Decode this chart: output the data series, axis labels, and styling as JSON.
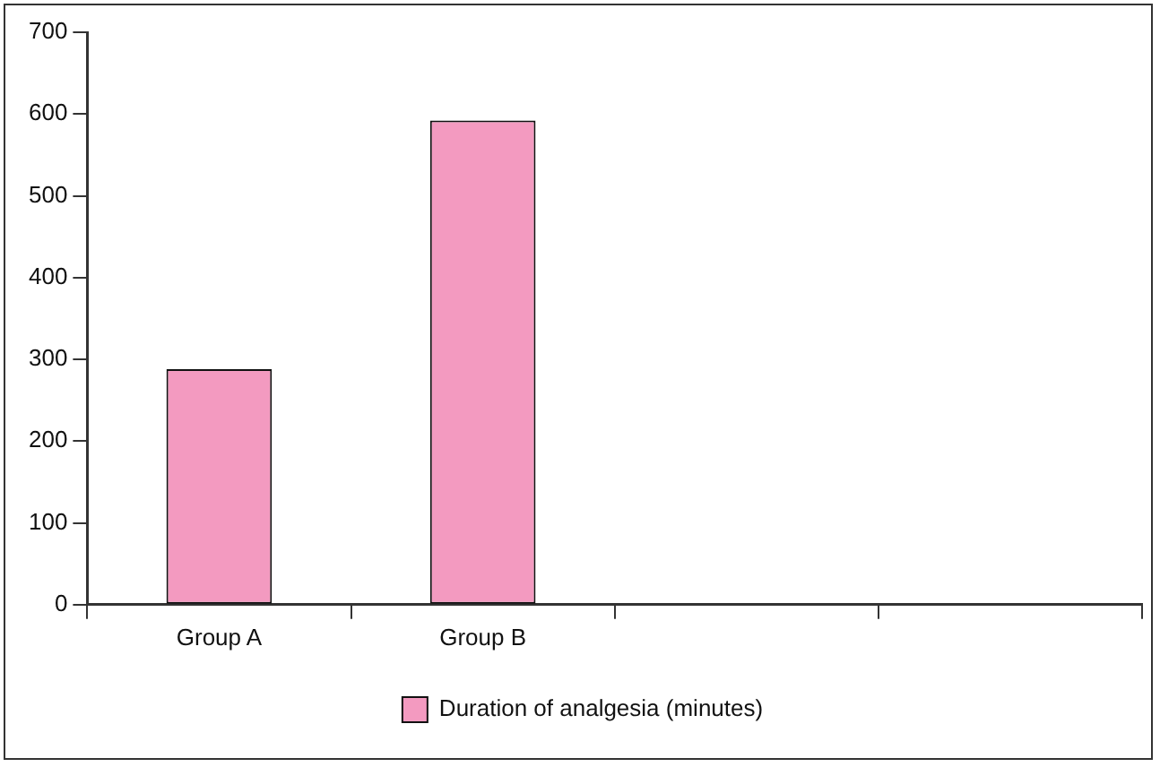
{
  "chart_data": {
    "type": "bar",
    "categories": [
      "Group A",
      "Group B",
      null,
      null
    ],
    "series": [
      {
        "name": "Duration of analgesia (minutes)",
        "color": "#f39ac0",
        "values": [
          288,
          592,
          null,
          null
        ]
      }
    ],
    "ylim": [
      0,
      700
    ],
    "yticks": [
      0,
      100,
      200,
      300,
      400,
      500,
      600,
      700
    ],
    "grid": false,
    "legend": "bottom"
  }
}
